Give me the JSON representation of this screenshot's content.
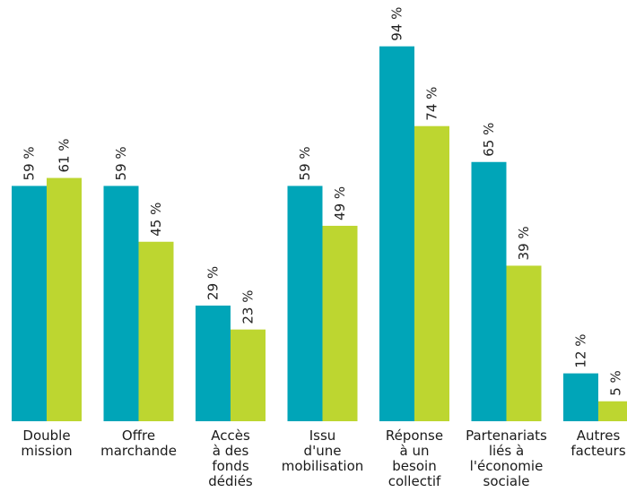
{
  "chart_data": {
    "type": "bar",
    "categories": [
      [
        "Double",
        "mission"
      ],
      [
        "Offre",
        "marchande"
      ],
      [
        "Accès",
        "à des",
        "fonds",
        "dédiés"
      ],
      [
        "Issu",
        "d'une",
        "mobilisation"
      ],
      [
        "Réponse",
        "à un",
        "besoin",
        "collectif"
      ],
      [
        "Partenariats",
        "liés à",
        "l'économie",
        "sociale"
      ],
      [
        "Autres",
        "facteurs"
      ]
    ],
    "series": [
      {
        "values": [
          59,
          59,
          29,
          59,
          94,
          65,
          12
        ],
        "labels": [
          "59 %",
          "59 %",
          "29 %",
          "59 %",
          "94 %",
          "65 %",
          "12 %"
        ],
        "color": "#00a5b8"
      },
      {
        "values": [
          61,
          45,
          23,
          49,
          74,
          39,
          5
        ],
        "labels": [
          "61 %",
          "45 %",
          "23 %",
          "49 %",
          "74 %",
          "39 %",
          "5 %"
        ],
        "color": "#bdd630"
      }
    ],
    "ylim": [
      0,
      100
    ],
    "grid": false,
    "legend": "none"
  }
}
